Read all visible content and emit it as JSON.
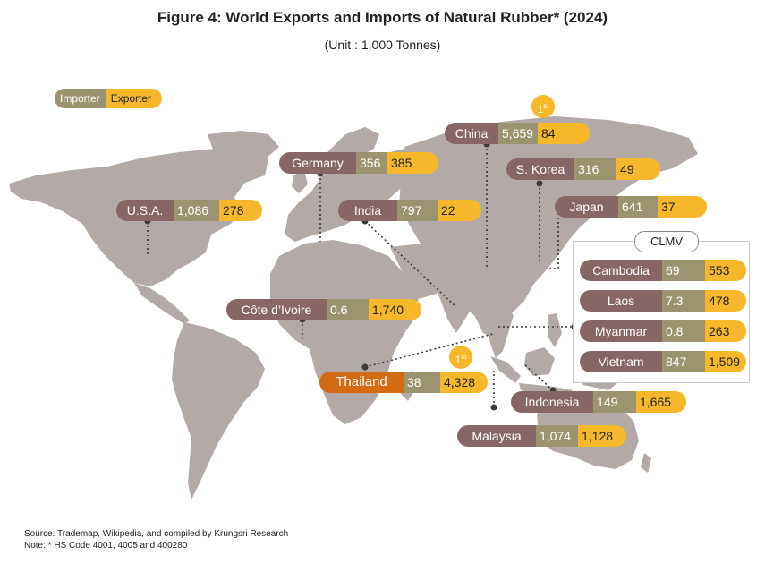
{
  "title": "Figure 4: World Exports and Imports of Natural Rubber* (2024)",
  "subtitle": "(Unit : 1,000 Tonnes)",
  "legend": {
    "importer": "Importer",
    "exporter": "Exporter"
  },
  "colors": {
    "name_box": "#876766",
    "importer": "#9c9470",
    "exporter": "#f6b82a",
    "highlight": "#d56a15",
    "land": "#b3aaa8"
  },
  "rank_badge": {
    "number": "1",
    "suffix": "st"
  },
  "clmv_label": "CLMV",
  "countries": {
    "china": {
      "name": "China",
      "importer": "5,659",
      "exporter": "84"
    },
    "germany": {
      "name": "Germany",
      "importer": "356",
      "exporter": "385"
    },
    "skorea": {
      "name": "S. Korea",
      "importer": "316",
      "exporter": "49"
    },
    "usa": {
      "name": "U.S.A.",
      "importer": "1,086",
      "exporter": "278"
    },
    "india": {
      "name": "India",
      "importer": "797",
      "exporter": "22"
    },
    "japan": {
      "name": "Japan",
      "importer": "641",
      "exporter": "37"
    },
    "cotedivoire": {
      "name": "Côte d’Ivoire",
      "importer": "0.6",
      "exporter": "1,740"
    },
    "thailand": {
      "name": "Thailand",
      "importer": "38",
      "exporter": "4,328"
    },
    "indonesia": {
      "name": "Indonesia",
      "importer": "149",
      "exporter": "1,665"
    },
    "malaysia": {
      "name": "Malaysia",
      "importer": "1,074",
      "exporter": "1,128"
    },
    "cambodia": {
      "name": "Cambodia",
      "importer": "69",
      "exporter": "553"
    },
    "laos": {
      "name": "Laos",
      "importer": "7.3",
      "exporter": "478"
    },
    "myanmar": {
      "name": "Myanmar",
      "importer": "0.8",
      "exporter": "263"
    },
    "vietnam": {
      "name": "Vietnam",
      "importer": "847",
      "exporter": "1,509"
    }
  },
  "source": "Source: Trademap, Wikipedia, and compiled by Krungsri Research",
  "note": "Note: * HS Code 4001, 4005 and 400280"
}
